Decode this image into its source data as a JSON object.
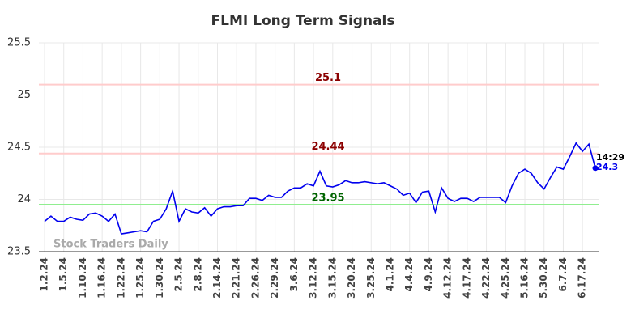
{
  "chart_data": {
    "type": "line",
    "title": "FLMI Long Term Signals",
    "watermark": "Stock Traders Daily",
    "categories": [
      "1.2.24",
      null,
      null,
      "1.5.24",
      null,
      null,
      "1.10.24",
      null,
      null,
      "1.16.24",
      null,
      null,
      "1.22.24",
      null,
      null,
      "1.25.24",
      null,
      null,
      "1.30.24",
      null,
      null,
      "2.5.24",
      null,
      null,
      "2.8.24",
      null,
      null,
      "2.14.24",
      null,
      null,
      "2.21.24",
      null,
      null,
      "2.26.24",
      null,
      null,
      "2.29.24",
      null,
      null,
      "3.6.24",
      null,
      null,
      "3.12.24",
      null,
      null,
      "3.15.24",
      null,
      null,
      "3.20.24",
      null,
      null,
      "3.25.24",
      null,
      null,
      "4.1.24",
      null,
      null,
      "4.4.24",
      null,
      null,
      "4.9.24",
      null,
      null,
      "4.12.24",
      null,
      null,
      "4.17.24",
      null,
      null,
      "4.22.24",
      null,
      null,
      "4.25.24",
      null,
      null,
      "5.16.24",
      null,
      null,
      "5.30.24",
      null,
      null,
      "6.7.24",
      null,
      null,
      "6.17.24",
      null,
      null
    ],
    "values": [
      23.79,
      23.84,
      23.79,
      23.79,
      23.83,
      23.81,
      23.8,
      23.86,
      23.87,
      23.84,
      23.79,
      23.86,
      23.67,
      23.68,
      23.69,
      23.7,
      23.69,
      23.79,
      23.81,
      23.91,
      24.08,
      23.79,
      23.91,
      23.88,
      23.87,
      23.92,
      23.84,
      23.91,
      23.93,
      23.93,
      23.94,
      23.94,
      24.01,
      24.01,
      23.99,
      24.04,
      24.02,
      24.02,
      24.08,
      24.11,
      24.11,
      24.15,
      24.13,
      24.27,
      24.13,
      24.12,
      24.14,
      24.18,
      24.16,
      24.16,
      24.17,
      24.16,
      24.15,
      24.16,
      24.13,
      24.1,
      24.04,
      24.06,
      23.97,
      24.07,
      24.08,
      23.88,
      24.11,
      24.01,
      23.98,
      24.01,
      24.01,
      23.98,
      24.02,
      24.02,
      24.02,
      24.02,
      23.97,
      24.13,
      24.25,
      24.29,
      24.25,
      24.16,
      24.1,
      24.21,
      24.31,
      24.29,
      24.41,
      24.54,
      24.46,
      24.53,
      24.3
    ],
    "color": "#0000ee",
    "last_time": "14:29",
    "levels": [
      {
        "value": 25.1,
        "line_color": "#ffcccc",
        "label_color": "#8b0000"
      },
      {
        "value": 24.44,
        "line_color": "#ffcccc",
        "label_color": "#8b0000"
      },
      {
        "value": 23.95,
        "line_color": "#90ee90",
        "label_color": "#006400"
      }
    ],
    "ylim": [
      23.5,
      25.5
    ],
    "yticks": [
      23.5,
      24,
      24.5,
      25,
      25.5
    ],
    "grid": true
  }
}
